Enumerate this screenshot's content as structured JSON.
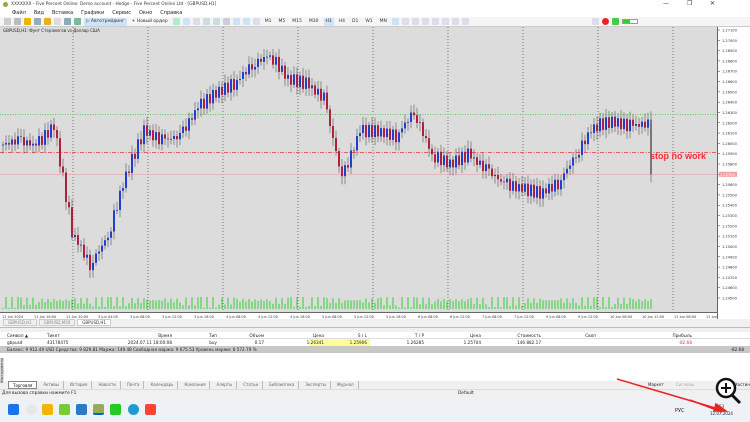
{
  "window": {
    "title": "XXXXXXX - Five Percent Online: Demo account - Hedge - Five Percent Online Ltd - [GBPUSD,H1]",
    "minimize": "—",
    "restore": "❐",
    "close": "✕"
  },
  "menu": [
    "Файл",
    "Вид",
    "Вставка",
    "Графики",
    "Сервис",
    "Окно",
    "Справка"
  ],
  "toolbar": {
    "autotrading": "Автотрейдинг",
    "new_order": "Новый ордер",
    "timeframes": [
      "M1",
      "M5",
      "M15",
      "M30",
      "H1",
      "H4",
      "D1",
      "W1",
      "MN"
    ],
    "active_timeframe": "H1"
  },
  "chart": {
    "header": "GBPUSD,H1: Фунт Стерлингов vs Доллар США",
    "annotation": "stop no work",
    "annotation_color": "#ff2a3a",
    "bull_color": "#1f3fd0",
    "bear_color": "#b0203a",
    "price_range": [
      1.245,
      1.271
    ],
    "closes": [
      1.2598,
      1.2603,
      1.2598,
      1.2617,
      1.2515,
      1.2482,
      1.251,
      1.257,
      1.2612,
      1.2603,
      1.2607,
      1.2635,
      1.2649,
      1.2658,
      1.2676,
      1.2686,
      1.2663,
      1.2658,
      1.2644,
      1.2566,
      1.2612,
      1.2612,
      1.2607,
      1.2631,
      1.2589,
      1.258,
      1.2589,
      1.2575,
      1.2561,
      1.2556,
      1.2552,
      1.2561,
      1.2589,
      1.2617,
      1.2621,
      1.2617,
      1.2619,
      1.257
    ],
    "tp_level": 1.2628,
    "sl_level": 1.2591,
    "bid_level": 1.257,
    "bid_label": "1.25704",
    "time_labels": [
      "11 Jun 2024",
      "11 Jun 16:00",
      "11 Jun 20:00",
      "3 Jun 04:00",
      "3 Jun 08:00",
      "3 Jun 12:00",
      "3 Jun 16:00",
      "4 Jun 08:00",
      "4 Jun 12:00",
      "4 Jun 16:00",
      "5 Jun 08:00",
      "5 Jun 12:00",
      "5 Jun 16:00",
      "6 Jun 08:00",
      "6 Jun 12:00",
      "7 Jun 08:00",
      "7 Jun 12:00",
      "9 Jun 08:00",
      "9 Jun 12:00",
      "10 Jun 08:00",
      "10 Jun 12:00",
      "11 Jun 08:00",
      "11 Jun 12:00"
    ]
  },
  "chart_tabs": [
    "GBPUSD,H1",
    "GBPUSD,M30",
    "GBPUSD,H1"
  ],
  "terminal": {
    "columns": [
      "Символ ▲",
      "Тикет",
      "Время",
      "Тип",
      "Объем",
      "Цена",
      "S / L",
      "T / P",
      "Цена",
      "Стоимость",
      "Своп",
      "Прибыль"
    ],
    "row": [
      "gbpusd",
      "43178475",
      "2024.07.11 18:00:08",
      "buy",
      "0.17",
      "1.26341",
      "1.25906",
      "1.26285",
      "1.25704",
      "146 882.17",
      "",
      "-82.68"
    ],
    "balance": "Баланс: 9 912.49 USD  Средства: 9 829.81  Маржа: 149.48  Свободная маржа: 9 675.53  Уровень маржи: 6 572.79 %",
    "total": "-82.68",
    "side_label": "Инструменты"
  },
  "terminal_tabs": [
    "Торговля",
    "Активы",
    "История",
    "Новости",
    "Почта",
    "Календарь",
    "Компания",
    "Алерты",
    "Статьи",
    "Библиотека",
    "Эксперты",
    "Журнал"
  ],
  "right_links": [
    "Маркет",
    "Сигналы",
    "Хостинг"
  ],
  "status": {
    "help": "Для вызова справки нажмите F1",
    "profile": "Default"
  },
  "tray": {
    "lang": "РУС",
    "time": "9:53",
    "date": "12.07.2024"
  }
}
